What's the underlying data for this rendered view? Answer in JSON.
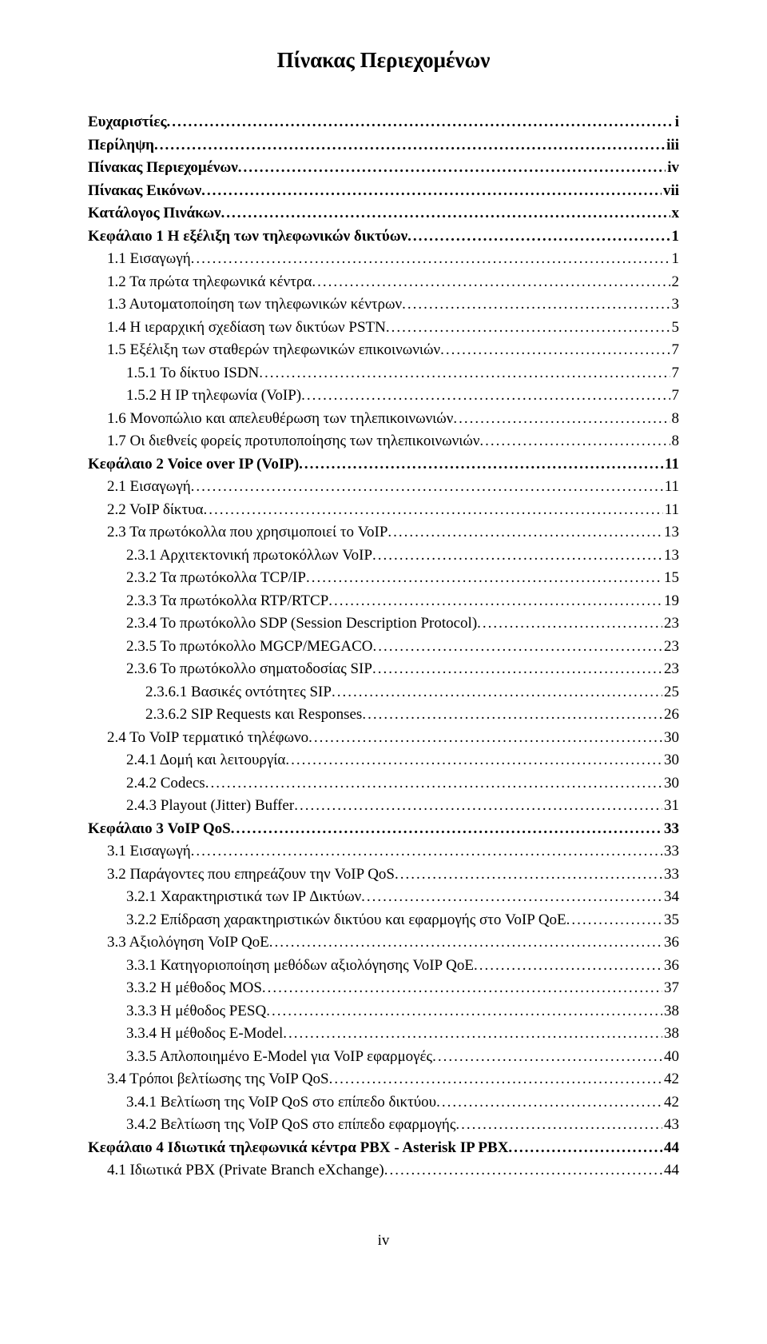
{
  "title": "Πίνακας Περιεχομένων",
  "page_number": "iv",
  "entries": [
    {
      "label": "Ευχαριστίες",
      "page": "i",
      "bold": true,
      "indent": 0
    },
    {
      "label": "Περίληψη",
      "page": "iii",
      "bold": true,
      "indent": 0
    },
    {
      "label": "Πίνακας Περιεχομένων",
      "page": "iv",
      "bold": true,
      "indent": 0
    },
    {
      "label": "Πίνακας Εικόνων",
      "page": "vii",
      "bold": true,
      "indent": 0
    },
    {
      "label": "Κατάλογος Πινάκων",
      "page": "x",
      "bold": true,
      "indent": 0
    },
    {
      "label": "Κεφάλαιο 1 Η εξέλιξη των τηλεφωνικών δικτύων",
      "page": "1",
      "bold": true,
      "indent": 0
    },
    {
      "label": "1.1 Εισαγωγή",
      "page": "1",
      "bold": false,
      "indent": 1
    },
    {
      "label": "1.2 Τα πρώτα τηλεφωνικά κέντρα",
      "page": "2",
      "bold": false,
      "indent": 1
    },
    {
      "label": "1.3 Αυτοματοποίηση των τηλεφωνικών κέντρων",
      "page": "3",
      "bold": false,
      "indent": 1
    },
    {
      "label": "1.4 Η ιεραρχική σχεδίαση των δικτύων PSTN",
      "page": "5",
      "bold": false,
      "indent": 1
    },
    {
      "label": "1.5 Εξέλιξη των σταθερών τηλεφωνικών επικοινωνιών",
      "page": "7",
      "bold": false,
      "indent": 1
    },
    {
      "label": "1.5.1 Το δίκτυο ISDN",
      "page": "7",
      "bold": false,
      "indent": 2
    },
    {
      "label": "1.5.2 Η IP τηλεφωνία (VoIP)",
      "page": "7",
      "bold": false,
      "indent": 2
    },
    {
      "label": "1.6 Μονοπώλιο και απελευθέρωση των τηλεπικοινωνιών",
      "page": "8",
      "bold": false,
      "indent": 1
    },
    {
      "label": "1.7 Οι διεθνείς φορείς προτυποποίησης των τηλεπικοινωνιών",
      "page": "8",
      "bold": false,
      "indent": 1
    },
    {
      "label": "Κεφάλαιο 2 Voice over IP (VoIP)",
      "page": "11",
      "bold": true,
      "indent": 0
    },
    {
      "label": "2.1 Εισαγωγή",
      "page": "11",
      "bold": false,
      "indent": 1
    },
    {
      "label": "2.2 VoIP δίκτυα",
      "page": "11",
      "bold": false,
      "indent": 1
    },
    {
      "label": "2.3 Τα πρωτόκολλα που χρησιμοποιεί το VoIP",
      "page": "13",
      "bold": false,
      "indent": 1
    },
    {
      "label": "2.3.1 Αρχιτεκτονική πρωτοκόλλων VoIP",
      "page": "13",
      "bold": false,
      "indent": 2
    },
    {
      "label": "2.3.2 Τα πρωτόκολλα TCP/IP",
      "page": "15",
      "bold": false,
      "indent": 2
    },
    {
      "label": "2.3.3 Τα πρωτόκολλα RTP/RTCP",
      "page": "19",
      "bold": false,
      "indent": 2
    },
    {
      "label": "2.3.4 Το πρωτόκολλο SDP (Session Description Protocol)",
      "page": "23",
      "bold": false,
      "indent": 2
    },
    {
      "label": "2.3.5 Το πρωτόκολλο MGCP/MEGACO",
      "page": "23",
      "bold": false,
      "indent": 2
    },
    {
      "label": "2.3.6 Το πρωτόκολλο σηματοδοσίας SIP",
      "page": "23",
      "bold": false,
      "indent": 2
    },
    {
      "label": "2.3.6.1 Βασικές οντότητες SIP",
      "page": "25",
      "bold": false,
      "indent": 3
    },
    {
      "label": "2.3.6.2 SIP Requests και Responses",
      "page": "26",
      "bold": false,
      "indent": 3
    },
    {
      "label": "2.4 Το VoIP τερματικό τηλέφωνο",
      "page": "30",
      "bold": false,
      "indent": 1
    },
    {
      "label": "2.4.1 Δομή και λειτουργία",
      "page": "30",
      "bold": false,
      "indent": 2
    },
    {
      "label": "2.4.2 Codecs",
      "page": "30",
      "bold": false,
      "indent": 2
    },
    {
      "label": "2.4.3 Playout (Jitter) Buffer",
      "page": "31",
      "bold": false,
      "indent": 2
    },
    {
      "label": "Κεφάλαιο 3 VoIP QoS",
      "page": "33",
      "bold": true,
      "indent": 0
    },
    {
      "label": "3.1 Εισαγωγή",
      "page": "33",
      "bold": false,
      "indent": 1
    },
    {
      "label": "3.2 Παράγοντες που επηρεάζουν την VoIP QoS",
      "page": "33",
      "bold": false,
      "indent": 1
    },
    {
      "label": "3.2.1 Χαρακτηριστικά των IP Δικτύων",
      "page": "34",
      "bold": false,
      "indent": 2
    },
    {
      "label": "3.2.2 Επίδραση χαρακτηριστικών δικτύου και εφαρμογής στο VoIP QoE",
      "page": "35",
      "bold": false,
      "indent": 2
    },
    {
      "label": "3.3 Αξιολόγηση VoIP QoE",
      "page": "36",
      "bold": false,
      "indent": 1
    },
    {
      "label": "3.3.1 Κατηγοριοποίηση μεθόδων αξιολόγησης VoIP QoE",
      "page": "36",
      "bold": false,
      "indent": 2
    },
    {
      "label": "3.3.2 Η μέθοδος MOS",
      "page": "37",
      "bold": false,
      "indent": 2
    },
    {
      "label": "3.3.3 Η μέθοδος PESQ",
      "page": "38",
      "bold": false,
      "indent": 2
    },
    {
      "label": "3.3.4 Η μέθοδος E-Model",
      "page": "38",
      "bold": false,
      "indent": 2
    },
    {
      "label": "3.3.5 Απλοποιημένο E-Model για VoIP εφαρμογές",
      "page": "40",
      "bold": false,
      "indent": 2
    },
    {
      "label": "3.4 Τρόποι βελτίωσης της VoIP QoS",
      "page": "42",
      "bold": false,
      "indent": 1
    },
    {
      "label": "3.4.1 Βελτίωση της VoIP QoS στο επίπεδο δικτύου",
      "page": "42",
      "bold": false,
      "indent": 2
    },
    {
      "label": "3.4.2 Βελτίωση της VoIP QoS στο επίπεδο εφαρμογής",
      "page": "43",
      "bold": false,
      "indent": 2
    },
    {
      "label": "Κεφάλαιο 4 Ιδιωτικά τηλεφωνικά κέντρα PBX - Asterisk IP PBX",
      "page": "44",
      "bold": true,
      "indent": 0
    },
    {
      "label": "4.1 Ιδιωτικά PBX (Private Branch eXchange)",
      "page": "44",
      "bold": false,
      "indent": 1
    }
  ]
}
